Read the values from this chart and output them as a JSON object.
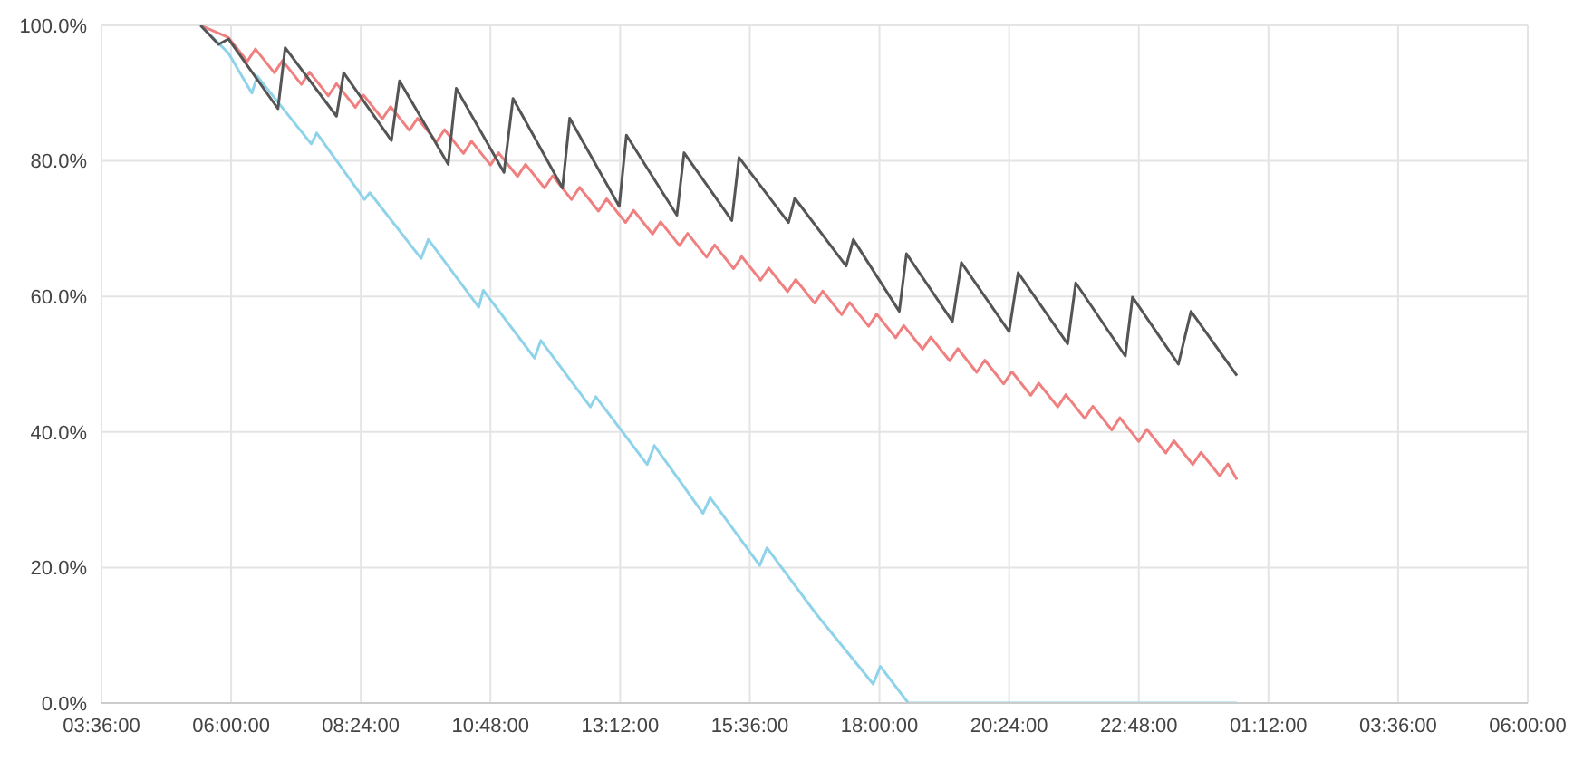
{
  "chart_data": {
    "type": "line",
    "xlim": [
      "--01-01T03:36",
      "--01-02T06:00"
    ],
    "ylim": [
      0,
      100
    ],
    "xticks": [
      {
        "value": "--01-01T03:36",
        "label": "03:36:00"
      },
      {
        "value": "--01-01T06:00",
        "label": "06:00:00"
      },
      {
        "value": "--01-01T08:24",
        "label": "08:24:00"
      },
      {
        "value": "--01-01T10:48",
        "label": "10:48:00"
      },
      {
        "value": "--01-01T13:12",
        "label": "13:12:00"
      },
      {
        "value": "--01-01T15:36",
        "label": "15:36:00"
      },
      {
        "value": "--01-01T18:00",
        "label": "18:00:00"
      },
      {
        "value": "--01-01T20:24",
        "label": "20:24:00"
      },
      {
        "value": "--01-01T22:48",
        "label": "22:48:00"
      },
      {
        "value": "--01-02T01:12",
        "label": "01:12:00"
      },
      {
        "value": "--01-02T03:36",
        "label": "03:36:00"
      },
      {
        "value": "--01-02T06:00",
        "label": "06:00:00"
      }
    ],
    "yticks": [
      {
        "value": 0,
        "label": "0.0%"
      },
      {
        "value": 20,
        "label": "20.0%"
      },
      {
        "value": 40,
        "label": "40.0%"
      },
      {
        "value": 60,
        "label": "60.0%"
      },
      {
        "value": 80,
        "label": "80.0%"
      },
      {
        "value": 100,
        "label": "100.0%"
      }
    ],
    "grid": true,
    "marker": "none",
    "line_style": "solid",
    "series": [
      {
        "color": "#f08080",
        "x": [
          "--01-01T05:26",
          "--01-01T05:57",
          "--01-01T06:18",
          "--01-01T06:27",
          "--01-01T06:48",
          "--01-01T06:57",
          "--01-01T07:18",
          "--01-01T07:27",
          "--01-01T07:48",
          "--01-01T07:57",
          "--01-01T08:18",
          "--01-01T08:27",
          "--01-01T08:48",
          "--01-01T08:57",
          "--01-01T09:18",
          "--01-01T09:27",
          "--01-01T09:48",
          "--01-01T09:57",
          "--01-01T10:18",
          "--01-01T10:27",
          "--01-01T10:48",
          "--01-01T10:57",
          "--01-01T11:18",
          "--01-01T11:27",
          "--01-01T11:48",
          "--01-01T11:57",
          "--01-01T12:18",
          "--01-01T12:27",
          "--01-01T12:48",
          "--01-01T12:57",
          "--01-01T13:18",
          "--01-01T13:27",
          "--01-01T13:48",
          "--01-01T13:57",
          "--01-01T14:18",
          "--01-01T14:27",
          "--01-01T14:48",
          "--01-01T14:57",
          "--01-01T15:18",
          "--01-01T15:27",
          "--01-01T15:48",
          "--01-01T15:57",
          "--01-01T16:18",
          "--01-01T16:27",
          "--01-01T16:48",
          "--01-01T16:57",
          "--01-01T17:18",
          "--01-01T17:27",
          "--01-01T17:48",
          "--01-01T17:57",
          "--01-01T18:18",
          "--01-01T18:27",
          "--01-01T18:48",
          "--01-01T18:57",
          "--01-01T19:18",
          "--01-01T19:27",
          "--01-01T19:48",
          "--01-01T19:57",
          "--01-01T20:18",
          "--01-01T20:27",
          "--01-01T20:48",
          "--01-01T20:57",
          "--01-01T21:18",
          "--01-01T21:27",
          "--01-01T21:48",
          "--01-01T21:57",
          "--01-01T22:18",
          "--01-01T22:27",
          "--01-01T22:48",
          "--01-01T22:57",
          "--01-01T23:18",
          "--01-01T23:27",
          "--01-01T23:48",
          "--01-01T23:57",
          "--01-02T00:18",
          "--01-02T00:27",
          "--01-02T00:37"
        ],
        "values": [
          100,
          98.2,
          94.7,
          96.5,
          93,
          94.8,
          91.3,
          93.1,
          89.6,
          91.4,
          87.9,
          89.7,
          86.2,
          88,
          84.5,
          86.3,
          82.8,
          84.6,
          81.1,
          82.9,
          79.4,
          81.2,
          77.7,
          79.5,
          76,
          77.8,
          74.3,
          76.1,
          72.6,
          74.4,
          70.9,
          72.7,
          69.2,
          71,
          67.5,
          69.3,
          65.8,
          67.6,
          64.1,
          65.9,
          62.4,
          64.2,
          60.7,
          62.5,
          59,
          60.8,
          57.3,
          59.1,
          55.6,
          57.4,
          53.9,
          55.7,
          52.2,
          54,
          50.5,
          52.3,
          48.8,
          50.6,
          47.1,
          48.9,
          45.4,
          47.2,
          43.7,
          45.5,
          42,
          43.8,
          40.3,
          42.1,
          38.6,
          40.4,
          36.9,
          38.7,
          35.2,
          37,
          33.5,
          35.3,
          33
        ]
      },
      {
        "color": "#8fd3ea",
        "x": [
          "--01-01T05:26",
          "--01-01T05:57",
          "--01-01T06:23",
          "--01-01T06:29",
          "--01-01T07:29",
          "--01-01T07:35",
          "--01-01T08:28",
          "--01-01T08:34",
          "--01-01T09:31",
          "--01-01T09:39",
          "--01-01T10:35",
          "--01-01T10:40",
          "--01-01T11:37",
          "--01-01T11:44",
          "--01-01T12:39",
          "--01-01T12:45",
          "--01-01T13:42",
          "--01-01T13:50",
          "--01-01T14:44",
          "--01-01T14:52",
          "--01-01T15:47",
          "--01-01T15:55",
          "--01-01T16:50",
          "--01-01T17:53",
          "--01-01T18:01",
          "--01-01T18:32",
          "--01-02T00:37"
        ],
        "values": [
          100,
          95.9,
          90,
          92.5,
          82.5,
          84.1,
          74.3,
          75.3,
          65.6,
          68.4,
          58.4,
          60.9,
          50.9,
          53.5,
          43.7,
          45.2,
          35.2,
          38,
          28,
          30.3,
          20.3,
          22.9,
          13.1,
          2.8,
          5.4,
          0,
          0
        ]
      },
      {
        "color": "#555555",
        "x": [
          "--01-01T05:26",
          "--01-01T05:46",
          "--01-01T05:57",
          "--01-01T06:52",
          "--01-01T07:00",
          "--01-01T07:57",
          "--01-01T08:05",
          "--01-01T08:58",
          "--01-01T09:07",
          "--01-01T10:01",
          "--01-01T10:10",
          "--01-01T11:03",
          "--01-01T11:13",
          "--01-01T12:08",
          "--01-01T12:16",
          "--01-01T13:11",
          "--01-01T13:19",
          "--01-01T14:15",
          "--01-01T14:23",
          "--01-01T15:16",
          "--01-01T15:24",
          "--01-01T16:19",
          "--01-01T16:26",
          "--01-01T17:23",
          "--01-01T17:31",
          "--01-01T18:22",
          "--01-01T18:30",
          "--01-01T19:21",
          "--01-01T19:31",
          "--01-01T20:24",
          "--01-01T20:34",
          "--01-01T21:29",
          "--01-01T21:38",
          "--01-01T22:33",
          "--01-01T22:41",
          "--01-01T23:32",
          "--01-01T23:46",
          "--01-02T00:37"
        ],
        "values": [
          100,
          97.2,
          98,
          87.7,
          96.7,
          86.6,
          93,
          83,
          91.8,
          79.5,
          90.7,
          78.3,
          89.2,
          76,
          86.3,
          73.3,
          83.8,
          72,
          81.2,
          71.2,
          80.5,
          70.9,
          74.5,
          64.5,
          68.4,
          57.8,
          66.3,
          56.3,
          65,
          54.8,
          63.5,
          53,
          62,
          51.2,
          59.9,
          50,
          57.8,
          48.3
        ]
      }
    ]
  }
}
